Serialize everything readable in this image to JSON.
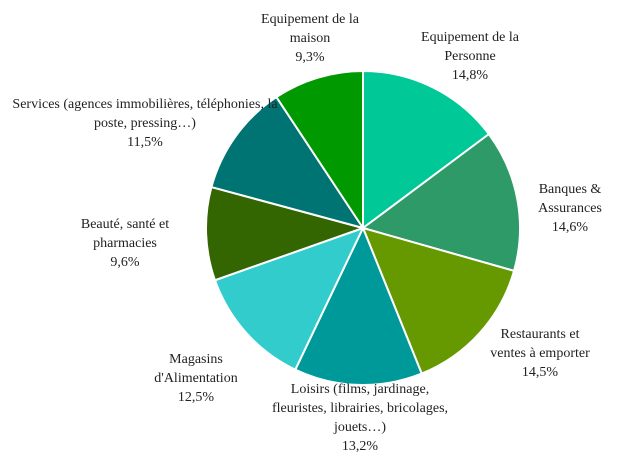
{
  "chart_data": {
    "type": "pie",
    "categories": [
      "Equipement de la Personne",
      "Banques & Assurances",
      "Restaurants et ventes à emporter",
      "Loisirs (films, jardinage, fleuristes, librairies, bricolages, jouets…)",
      "Magasins d'Alimentation",
      "Beauté, santé et pharmacies",
      "Services (agences immobilières, téléphonies, la poste, pressing…)",
      "Equipement de la maison"
    ],
    "values": [
      14.8,
      14.6,
      14.5,
      13.2,
      12.5,
      9.6,
      11.5,
      9.3
    ],
    "value_labels": [
      "14,8%",
      "14,6%",
      "14,5%",
      "13,2%",
      "12,5%",
      "9,6%",
      "11,5%",
      "9,3%"
    ],
    "colors": [
      "#00c896",
      "#2e9a68",
      "#669900",
      "#009999",
      "#33cccc",
      "#336600",
      "#007373",
      "#009900"
    ]
  }
}
